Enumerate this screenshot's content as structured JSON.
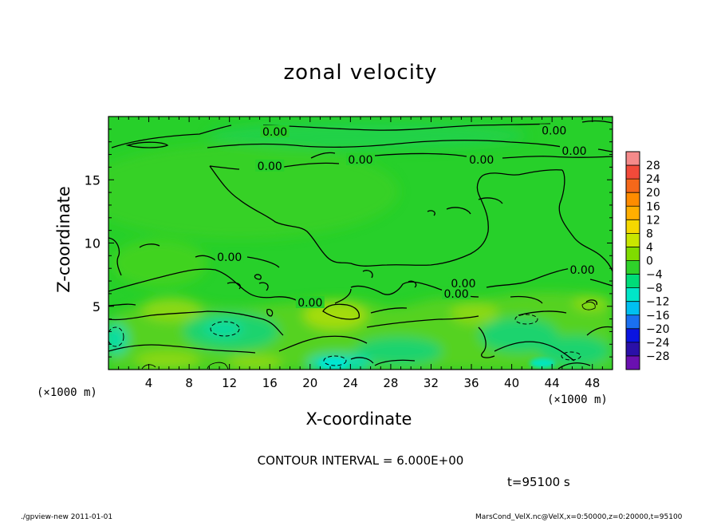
{
  "chart_data": {
    "type": "heatmap",
    "title": "zonal velocity",
    "xlabel": "X-coordinate",
    "ylabel": "Z-coordinate",
    "x_unit": "(×1000 m)",
    "y_unit": "(×1000 m)",
    "xlim": [
      0,
      50
    ],
    "ylim": [
      0,
      20
    ],
    "x_ticks": [
      4,
      8,
      12,
      16,
      20,
      24,
      28,
      32,
      36,
      40,
      44,
      48
    ],
    "y_ticks": [
      5,
      10,
      15
    ],
    "colorbar": {
      "labels": [
        "28",
        "24",
        "20",
        "16",
        "12",
        "8",
        "4",
        "0",
        "−4",
        "−8",
        "−12",
        "−16",
        "−20",
        "−24",
        "−28"
      ],
      "colors": [
        "#f58a8a",
        "#f24a3a",
        "#f5681a",
        "#ff8c00",
        "#ffae00",
        "#f5d800",
        "#c8e600",
        "#80dc00",
        "#2fd22a",
        "#00dc78",
        "#00e6c8",
        "#00c0f0",
        "#1a70f0",
        "#0a14e0",
        "#2a10a8",
        "#6a10b0"
      ]
    },
    "contour_labels": [
      {
        "text": "0.00",
        "x": 16.5,
        "z": 18.8
      },
      {
        "text": "0.00",
        "x": 44.2,
        "z": 18.9
      },
      {
        "text": "0.00",
        "x": 46.2,
        "z": 17.3
      },
      {
        "text": "0.00",
        "x": 25.0,
        "z": 16.6
      },
      {
        "text": "0.00",
        "x": 37.0,
        "z": 16.6
      },
      {
        "text": "0.00",
        "x": 16.0,
        "z": 16.1
      },
      {
        "text": "0.00",
        "x": 12.0,
        "z": 8.9
      },
      {
        "text": "0.00",
        "x": 47.0,
        "z": 7.9
      },
      {
        "text": "0.00",
        "x": 35.2,
        "z": 6.8
      },
      {
        "text": "0.00",
        "x": 34.5,
        "z": 6.0
      },
      {
        "text": "0.00",
        "x": 20.0,
        "z": 5.3
      }
    ],
    "contour_interval": "CONTOUR INTERVAL = 6.000E+00",
    "time_label": "t=95100 s"
  },
  "footer": {
    "left": "./gpview-new   2011-01-01",
    "right": "MarsCond_VelX.nc@VelX,x=0:50000,z=0:20000,t=95100"
  }
}
